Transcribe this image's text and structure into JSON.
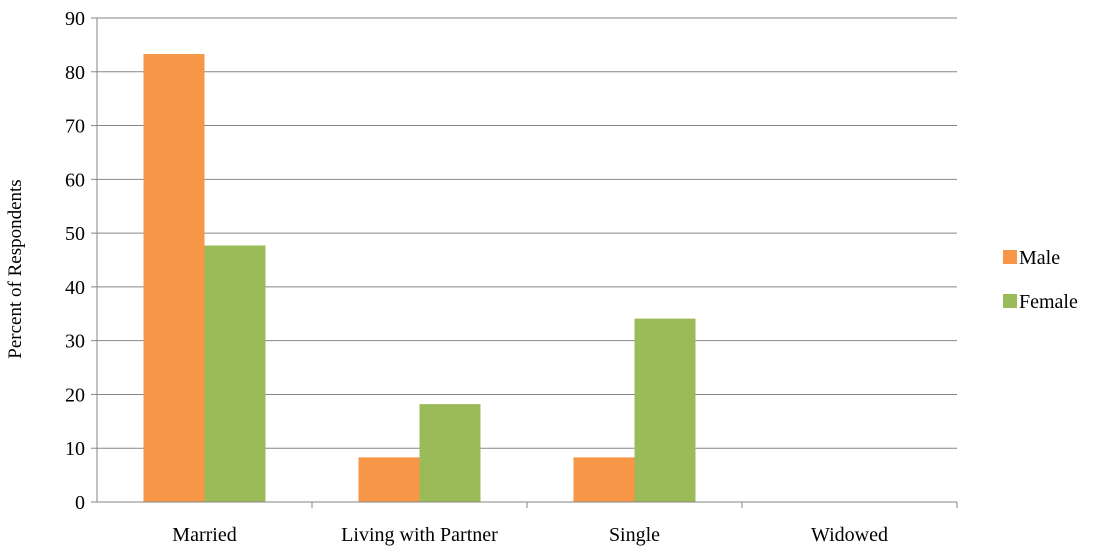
{
  "chart_data": {
    "type": "bar",
    "title": "",
    "xlabel": "",
    "ylabel": "Percent of Respondents",
    "ylim": [
      0,
      90
    ],
    "yticks": [
      0,
      10,
      20,
      30,
      40,
      50,
      60,
      70,
      80,
      90
    ],
    "grid": true,
    "legend_position": "right",
    "categories": [
      "Married",
      "Living with Partner",
      "Single",
      "Widowed"
    ],
    "series": [
      {
        "name": "Male",
        "color": "#F79646",
        "values": [
          83.3,
          8.3,
          8.3,
          0
        ]
      },
      {
        "name": "Female",
        "color": "#9BBB59",
        "values": [
          47.7,
          18.2,
          34.1,
          0
        ]
      }
    ]
  }
}
